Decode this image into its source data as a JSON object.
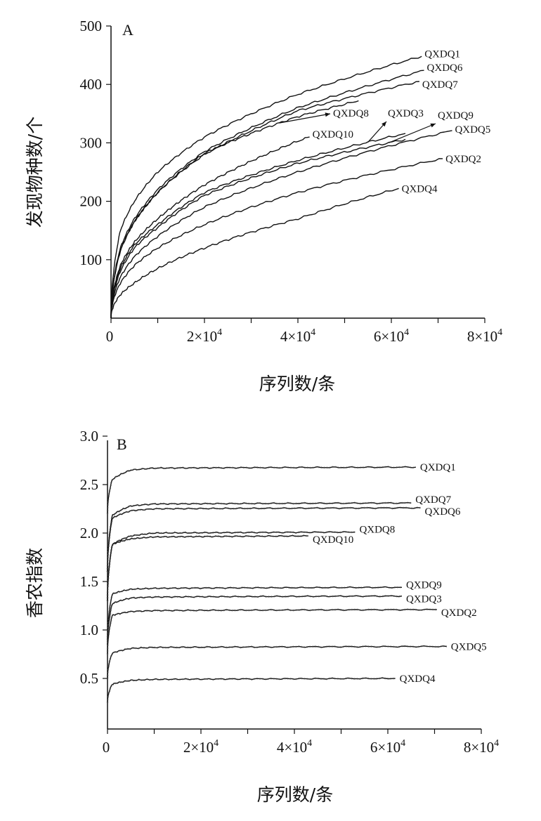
{
  "chart_data": [
    {
      "type": "line",
      "panel": "A",
      "xlabel": "序列数/条",
      "ylabel": "发现物种数/个",
      "xlim": [
        0,
        80000
      ],
      "ylim": [
        0,
        500
      ],
      "xticks": [
        0,
        20000,
        40000,
        60000,
        80000
      ],
      "xtick_labels": [
        "0",
        "2×10⁴",
        "4×10⁴",
        "6×10⁴",
        "8×10⁴"
      ],
      "yticks": [
        100,
        200,
        300,
        400,
        500
      ],
      "ytick_labels": [
        "100",
        "200",
        "300",
        "400",
        "500"
      ],
      "grid": false,
      "series": [
        {
          "name": "QXDQ1",
          "x": [
            0,
            2000,
            5000,
            10000,
            20000,
            40000,
            66500
          ],
          "y": [
            0,
            150,
            200,
            250,
            310,
            383,
            448
          ]
        },
        {
          "name": "QXDQ6",
          "x": [
            0,
            2000,
            5000,
            10000,
            20000,
            40000,
            67000
          ],
          "y": [
            0,
            120,
            170,
            220,
            285,
            360,
            424
          ]
        },
        {
          "name": "QXDQ7",
          "x": [
            0,
            2000,
            5000,
            10000,
            20000,
            40000,
            66000
          ],
          "y": [
            0,
            115,
            165,
            215,
            280,
            355,
            405
          ]
        },
        {
          "name": "QXDQ8",
          "x": [
            0,
            2000,
            5000,
            10000,
            20000,
            40000,
            53000
          ],
          "y": [
            0,
            115,
            165,
            215,
            282,
            345,
            372
          ]
        },
        {
          "name": "QXDQ10",
          "x": [
            0,
            2000,
            5000,
            10000,
            20000,
            40000,
            42500
          ],
          "y": [
            0,
            90,
            130,
            170,
            228,
            303,
            310
          ]
        },
        {
          "name": "QXDQ3",
          "x": [
            0,
            2000,
            5000,
            10000,
            20000,
            40000,
            63000
          ],
          "y": [
            0,
            85,
            125,
            160,
            215,
            270,
            316
          ]
        },
        {
          "name": "QXDQ9",
          "x": [
            0,
            2000,
            5000,
            10000,
            20000,
            40000,
            63000
          ],
          "y": [
            0,
            80,
            120,
            155,
            210,
            265,
            306
          ]
        },
        {
          "name": "QXDQ5",
          "x": [
            0,
            2000,
            5000,
            10000,
            20000,
            40000,
            73000
          ],
          "y": [
            0,
            70,
            105,
            140,
            190,
            250,
            321
          ]
        },
        {
          "name": "QXDQ2",
          "x": [
            0,
            2000,
            5000,
            10000,
            20000,
            40000,
            71000
          ],
          "y": [
            0,
            60,
            90,
            120,
            160,
            215,
            273
          ]
        },
        {
          "name": "QXDQ4",
          "x": [
            0,
            2000,
            5000,
            10000,
            20000,
            40000,
            61600
          ],
          "y": [
            0,
            40,
            60,
            85,
            120,
            170,
            222
          ]
        }
      ]
    },
    {
      "type": "line",
      "panel": "B",
      "xlabel": "序列数/条",
      "ylabel": "香农指数",
      "xlim": [
        0,
        80000
      ],
      "ylim": [
        0,
        3.0
      ],
      "xticks": [
        0,
        20000,
        40000,
        60000,
        80000
      ],
      "xtick_labels": [
        "0",
        "2×10⁴",
        "4×10⁴",
        "6×10⁴",
        "8×10⁴"
      ],
      "yticks": [
        0.5,
        1.0,
        1.5,
        2.0,
        2.5,
        3.0
      ],
      "ytick_labels": [
        "0.5",
        "1.0",
        "1.5",
        "2.0",
        "2.5",
        "3.0"
      ],
      "grid": false,
      "series": [
        {
          "name": "QXDQ1",
          "x": [
            0,
            1000,
            5000,
            10000,
            66000
          ],
          "y": [
            2.2,
            2.55,
            2.65,
            2.67,
            2.68
          ]
        },
        {
          "name": "QXDQ7",
          "x": [
            0,
            1000,
            5000,
            10000,
            65000
          ],
          "y": [
            1.6,
            2.18,
            2.28,
            2.3,
            2.31
          ]
        },
        {
          "name": "QXDQ6",
          "x": [
            0,
            1000,
            5000,
            10000,
            67000
          ],
          "y": [
            1.6,
            2.15,
            2.23,
            2.25,
            2.26
          ]
        },
        {
          "name": "QXDQ8",
          "x": [
            0,
            1000,
            5000,
            10000,
            53000
          ],
          "y": [
            1.3,
            1.88,
            1.97,
            2.0,
            2.01
          ]
        },
        {
          "name": "QXDQ10",
          "x": [
            0,
            1000,
            5000,
            10000,
            43000
          ],
          "y": [
            1.3,
            1.88,
            1.94,
            1.96,
            1.97
          ]
        },
        {
          "name": "QXDQ9",
          "x": [
            0,
            1000,
            5000,
            10000,
            63000
          ],
          "y": [
            0.9,
            1.37,
            1.42,
            1.43,
            1.44
          ]
        },
        {
          "name": "QXDQ3",
          "x": [
            0,
            1000,
            5000,
            10000,
            63000
          ],
          "y": [
            0.85,
            1.27,
            1.33,
            1.34,
            1.35
          ]
        },
        {
          "name": "QXDQ2",
          "x": [
            0,
            1000,
            5000,
            10000,
            70500
          ],
          "y": [
            0.75,
            1.15,
            1.19,
            1.2,
            1.21
          ]
        },
        {
          "name": "QXDQ5",
          "x": [
            0,
            1000,
            5000,
            10000,
            72600
          ],
          "y": [
            0.5,
            0.76,
            0.81,
            0.82,
            0.83
          ]
        },
        {
          "name": "QXDQ4",
          "x": [
            0,
            1000,
            5000,
            10000,
            61600
          ],
          "y": [
            0.25,
            0.44,
            0.48,
            0.49,
            0.5
          ]
        }
      ]
    }
  ]
}
